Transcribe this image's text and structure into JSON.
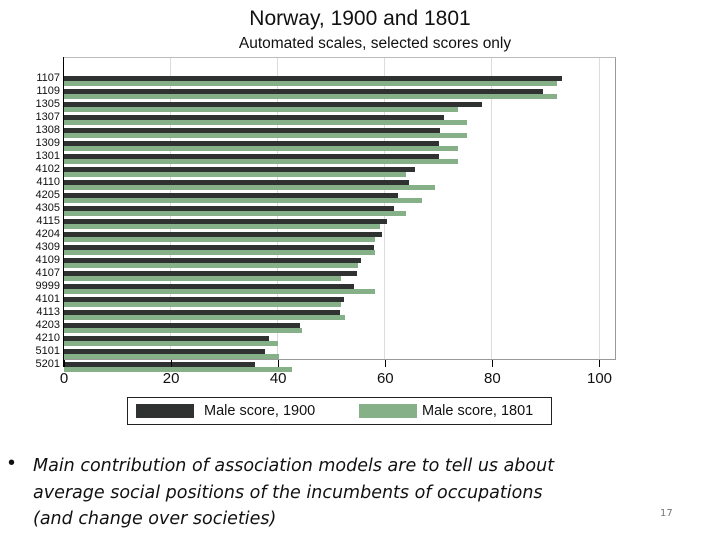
{
  "chart_data": {
    "type": "bar",
    "orientation": "horizontal",
    "title": "Norway, 1900 and 1801",
    "subtitle": "Automated scales, selected scores only",
    "xlabel": "",
    "ylabel": "",
    "xlim": [
      0,
      103
    ],
    "xticks": [
      0,
      20,
      40,
      60,
      80,
      100
    ],
    "grid": true,
    "legend_position": "bottom",
    "categories": [
      "1107",
      "1109",
      "1305",
      "1307",
      "1308",
      "1309",
      "1301",
      "4102",
      "4110",
      "4205",
      "4305",
      "4115",
      "4204",
      "4309",
      "4109",
      "4107",
      "9999",
      "4101",
      "4113",
      "4203",
      "4210",
      "5101",
      "5201"
    ],
    "series": [
      {
        "name": "Male score, 1900",
        "color": "#2f3230",
        "values": [
          93,
          89.5,
          78,
          71,
          70.3,
          70,
          70,
          65.6,
          64.4,
          62.4,
          61.6,
          60.3,
          59.4,
          57.9,
          55.5,
          54.8,
          54.2,
          52.2,
          51.6,
          44,
          38.2,
          37.6,
          35.7
        ]
      },
      {
        "name": "Male score, 1801",
        "color": "#86b088",
        "values": [
          92,
          92,
          73.5,
          75.3,
          75.3,
          73.5,
          73.5,
          63.8,
          69.3,
          66.9,
          63.8,
          59,
          58.1,
          58.1,
          54.9,
          51.8,
          58.1,
          51.8,
          52.5,
          44.5,
          39.9,
          40.2,
          42.5
        ]
      }
    ]
  },
  "slide": {
    "bullet_symbol": "•",
    "bullet_lines": [
      "Main contribution of association models are to tell us about",
      "average social positions of the incumbents of occupations",
      "(and change over societies)"
    ],
    "page_number": "17"
  }
}
